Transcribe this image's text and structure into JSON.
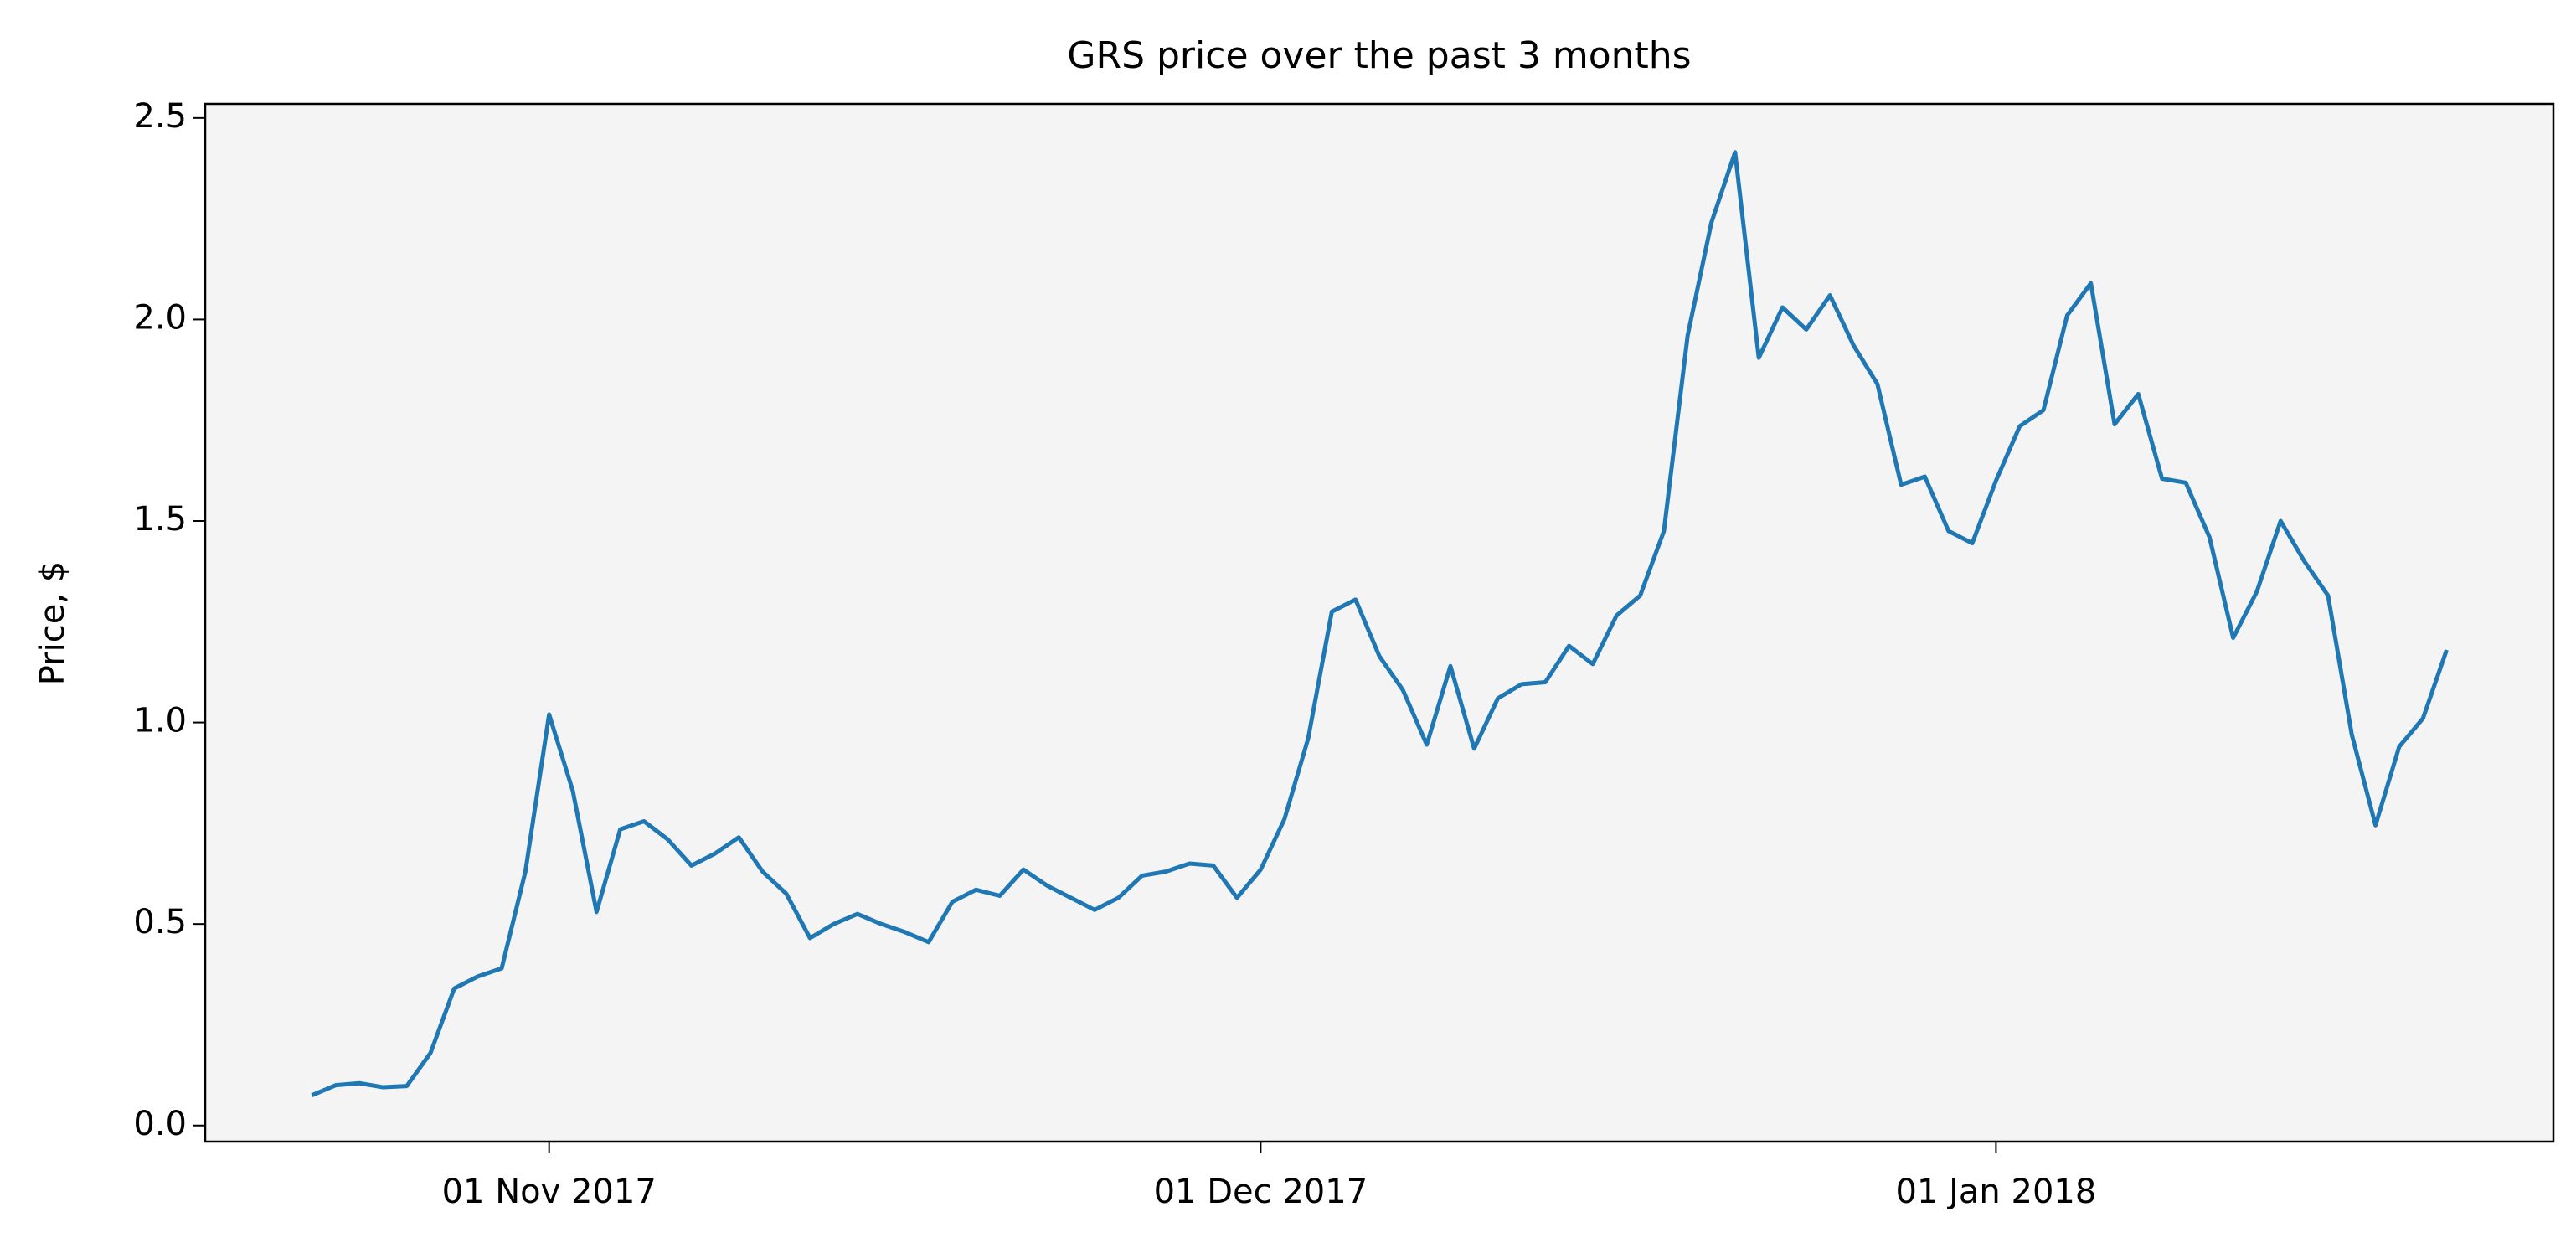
{
  "chart_data": {
    "type": "line",
    "title": "GRS price over the past 3 months",
    "ylabel": "Price, $",
    "x": [
      "2017-10-22",
      "2017-10-23",
      "2017-10-24",
      "2017-10-25",
      "2017-10-26",
      "2017-10-27",
      "2017-10-28",
      "2017-10-29",
      "2017-10-30",
      "2017-10-31",
      "2017-11-01",
      "2017-11-02",
      "2017-11-03",
      "2017-11-04",
      "2017-11-05",
      "2017-11-06",
      "2017-11-07",
      "2017-11-08",
      "2017-11-09",
      "2017-11-10",
      "2017-11-11",
      "2017-11-12",
      "2017-11-13",
      "2017-11-14",
      "2017-11-15",
      "2017-11-16",
      "2017-11-17",
      "2017-11-18",
      "2017-11-19",
      "2017-11-20",
      "2017-11-21",
      "2017-11-22",
      "2017-11-23",
      "2017-11-24",
      "2017-11-25",
      "2017-11-26",
      "2017-11-27",
      "2017-11-28",
      "2017-11-29",
      "2017-11-30",
      "2017-12-01",
      "2017-12-02",
      "2017-12-03",
      "2017-12-04",
      "2017-12-05",
      "2017-12-06",
      "2017-12-07",
      "2017-12-08",
      "2017-12-09",
      "2017-12-10",
      "2017-12-11",
      "2017-12-12",
      "2017-12-13",
      "2017-12-14",
      "2017-12-15",
      "2017-12-16",
      "2017-12-17",
      "2017-12-18",
      "2017-12-19",
      "2017-12-20",
      "2017-12-21",
      "2017-12-22",
      "2017-12-23",
      "2017-12-24",
      "2017-12-25",
      "2017-12-26",
      "2017-12-27",
      "2017-12-28",
      "2017-12-29",
      "2017-12-30",
      "2017-12-31",
      "2018-01-01",
      "2018-01-02",
      "2018-01-03",
      "2018-01-04",
      "2018-01-05",
      "2018-01-06",
      "2018-01-07",
      "2018-01-08",
      "2018-01-09",
      "2018-01-10",
      "2018-01-11",
      "2018-01-12",
      "2018-01-13",
      "2018-01-14",
      "2018-01-15",
      "2018-01-16",
      "2018-01-17",
      "2018-01-18",
      "2018-01-19",
      "2018-01-20"
    ],
    "series": [
      {
        "name": "GRS",
        "color": "#1f77b4",
        "values": [
          0.075,
          0.1,
          0.105,
          0.095,
          0.098,
          0.18,
          0.34,
          0.37,
          0.39,
          0.63,
          1.02,
          0.83,
          0.53,
          0.735,
          0.755,
          0.71,
          0.645,
          0.675,
          0.715,
          0.63,
          0.575,
          0.465,
          0.5,
          0.525,
          0.5,
          0.48,
          0.455,
          0.555,
          0.585,
          0.57,
          0.635,
          0.595,
          0.565,
          0.535,
          0.565,
          0.62,
          0.63,
          0.65,
          0.645,
          0.565,
          0.635,
          0.76,
          0.96,
          1.275,
          1.305,
          1.165,
          1.08,
          0.945,
          1.14,
          0.935,
          1.06,
          1.095,
          1.1,
          1.19,
          1.145,
          1.265,
          1.315,
          1.475,
          1.96,
          2.24,
          2.415,
          1.905,
          2.03,
          1.975,
          2.06,
          1.935,
          1.84,
          1.59,
          1.61,
          1.475,
          1.445,
          1.6,
          1.735,
          1.775,
          2.01,
          2.09,
          1.74,
          1.815,
          1.605,
          1.595,
          1.46,
          1.21,
          1.325,
          1.5,
          1.4,
          1.315,
          0.97,
          0.745,
          0.94,
          1.01,
          1.18
        ]
      }
    ],
    "xlim": [
      "2017-10-17T12:00",
      "2018-01-24T12:00"
    ],
    "xticks": [
      {
        "value": "2017-11-01",
        "label": "01 Nov 2017"
      },
      {
        "value": "2017-12-01",
        "label": "01 Dec 2017"
      },
      {
        "value": "2018-01-01",
        "label": "01 Jan 2018"
      }
    ],
    "ylim": [
      -0.04,
      2.535
    ],
    "yticks": [
      {
        "value": 0,
        "label": "0.0"
      },
      0.5,
      {
        "value": 1,
        "label": "1.0"
      },
      1.5,
      {
        "value": 2,
        "label": "2.0"
      },
      2.5
    ],
    "background": "#f4f4f4"
  }
}
